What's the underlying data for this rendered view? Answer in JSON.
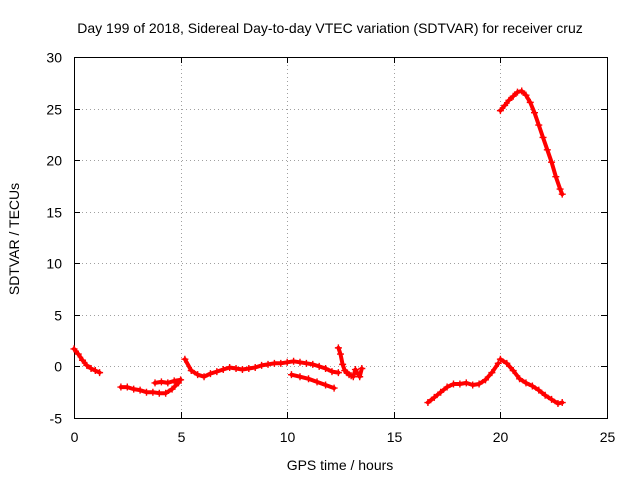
{
  "chart_data": {
    "type": "scatter",
    "title": "Day 199 of 2018, Sidereal Day-to-day VTEC variation (SDTVAR) for receiver cruz",
    "xlabel": "GPS time / hours",
    "ylabel": "SDTVAR / TECUs",
    "xlim": [
      0,
      25
    ],
    "ylim": [
      -5,
      30
    ],
    "xticks": [
      0,
      5,
      10,
      15,
      20,
      25
    ],
    "yticks": [
      -5,
      0,
      5,
      10,
      15,
      20,
      25,
      30
    ],
    "grid": true,
    "marker": "+",
    "series": [
      {
        "name": "cruz",
        "color": "#ff0000",
        "segments": [
          {
            "x": [
              0.0,
              0.2,
              0.4,
              0.6,
              0.8,
              1.0,
              1.2
            ],
            "y": [
              1.7,
              1.2,
              0.6,
              0.1,
              -0.2,
              -0.4,
              -0.6
            ]
          },
          {
            "x": [
              2.2,
              2.5,
              2.8,
              3.1,
              3.4,
              3.7,
              4.0,
              4.3,
              4.6,
              4.9
            ],
            "y": [
              -2.0,
              -2.0,
              -2.2,
              -2.3,
              -2.5,
              -2.5,
              -2.6,
              -2.6,
              -2.2,
              -1.6
            ]
          },
          {
            "x": [
              3.8,
              4.1,
              4.4,
              4.7,
              5.0
            ],
            "y": [
              -1.6,
              -1.5,
              -1.6,
              -1.4,
              -1.3
            ]
          },
          {
            "x": [
              5.2,
              5.5,
              5.8,
              6.1,
              6.4,
              6.7,
              7.0,
              7.3,
              7.6,
              7.9,
              8.2,
              8.5,
              8.8,
              9.1,
              9.4,
              9.7,
              10.0,
              10.3,
              10.6,
              10.9,
              11.2,
              11.5,
              11.8,
              12.1,
              12.4
            ],
            "y": [
              0.7,
              -0.4,
              -0.8,
              -1.0,
              -0.7,
              -0.5,
              -0.3,
              -0.1,
              -0.2,
              -0.3,
              -0.2,
              -0.1,
              0.1,
              0.2,
              0.3,
              0.3,
              0.4,
              0.5,
              0.4,
              0.3,
              0.2,
              0.0,
              -0.2,
              -0.5,
              -0.6
            ]
          },
          {
            "x": [
              10.2,
              10.6,
              11.0,
              11.4,
              11.8,
              12.2
            ],
            "y": [
              -0.8,
              -1.0,
              -1.2,
              -1.5,
              -1.8,
              -2.1
            ]
          },
          {
            "x": [
              12.4,
              12.5,
              12.6,
              12.7,
              12.8,
              12.9,
              13.0,
              13.1,
              13.2,
              13.3,
              13.4,
              13.5
            ],
            "y": [
              1.8,
              1.2,
              0.2,
              -0.4,
              -0.6,
              -0.8,
              -0.9,
              -1.0,
              -0.3,
              -0.7,
              -1.0,
              -0.2
            ]
          },
          {
            "x": [
              16.6,
              16.9,
              17.2,
              17.5,
              17.8,
              18.1,
              18.4,
              18.7,
              19.0,
              19.3,
              19.6,
              19.9
            ],
            "y": [
              -3.5,
              -3.0,
              -2.5,
              -2.0,
              -1.7,
              -1.7,
              -1.6,
              -1.8,
              -1.7,
              -1.3,
              -0.6,
              0.3
            ]
          },
          {
            "x": [
              20.0,
              20.3,
              20.6,
              20.9,
              21.2,
              21.5,
              21.8,
              22.1,
              22.4,
              22.7,
              22.9
            ],
            "y": [
              0.7,
              0.3,
              -0.4,
              -1.2,
              -1.6,
              -1.9,
              -2.3,
              -2.8,
              -3.2,
              -3.6,
              -3.5
            ]
          },
          {
            "x": [
              20.0,
              20.2,
              20.4,
              20.6,
              20.8,
              21.0,
              21.2,
              21.4,
              21.6,
              21.8,
              22.0,
              22.2,
              22.4,
              22.6,
              22.8,
              22.9
            ],
            "y": [
              24.8,
              25.3,
              25.8,
              26.2,
              26.6,
              26.7,
              26.3,
              25.6,
              24.6,
              23.4,
              22.2,
              21.0,
              19.8,
              18.4,
              17.2,
              16.7
            ]
          }
        ]
      }
    ]
  }
}
